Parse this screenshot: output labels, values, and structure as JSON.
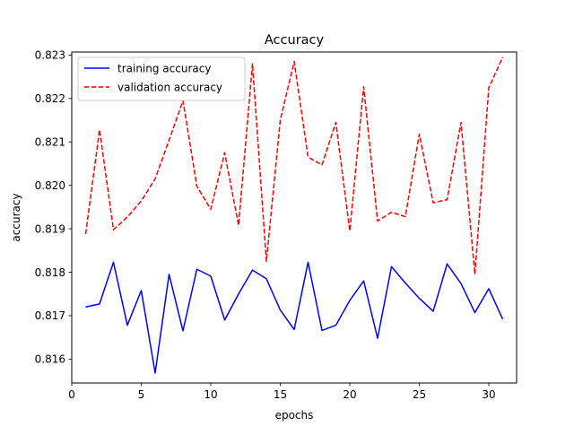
{
  "chart_data": {
    "type": "line",
    "title": "Accuracy",
    "xlabel": "epochs",
    "ylabel": "accuracy",
    "xlim": [
      0,
      32
    ],
    "ylim": [
      0.81545,
      0.82307
    ],
    "xticks": [
      0,
      5,
      10,
      15,
      20,
      25,
      30
    ],
    "xtick_labels": [
      "0",
      "5",
      "10",
      "15",
      "20",
      "25",
      "30"
    ],
    "yticks": [
      0.816,
      0.817,
      0.818,
      0.819,
      0.82,
      0.821,
      0.822,
      0.823
    ],
    "ytick_labels": [
      "0.816",
      "0.817",
      "0.818",
      "0.819",
      "0.820",
      "0.821",
      "0.822",
      "0.823"
    ],
    "grid": false,
    "legend_position": "top-left",
    "x": [
      1,
      2,
      3,
      4,
      5,
      6,
      7,
      8,
      9,
      10,
      11,
      12,
      13,
      14,
      15,
      16,
      17,
      18,
      19,
      20,
      21,
      22,
      23,
      24,
      25,
      26,
      27,
      28,
      29,
      30,
      31
    ],
    "series": [
      {
        "name": "training accuracy",
        "color": "#0000ff",
        "dash": "solid",
        "values": [
          0.8172,
          0.81727,
          0.81823,
          0.81678,
          0.81758,
          0.81568,
          0.81795,
          0.81665,
          0.81807,
          0.81791,
          0.8169,
          0.8175,
          0.81805,
          0.81785,
          0.81713,
          0.81668,
          0.81823,
          0.81666,
          0.81678,
          0.81735,
          0.8178,
          0.81648,
          0.81813,
          0.81775,
          0.8174,
          0.8171,
          0.81819,
          0.81774,
          0.81707,
          0.81762,
          0.81692
        ]
      },
      {
        "name": "validation accuracy",
        "color": "#ff0000",
        "dash": "dashed",
        "values": [
          0.81888,
          0.82128,
          0.81898,
          0.81927,
          0.81964,
          0.82015,
          0.82104,
          0.82195,
          0.81998,
          0.81945,
          0.82075,
          0.81908,
          0.8228,
          0.81825,
          0.8215,
          0.82285,
          0.82065,
          0.82047,
          0.82145,
          0.81895,
          0.82227,
          0.81918,
          0.81938,
          0.81928,
          0.82118,
          0.8196,
          0.81967,
          0.82145,
          0.81795,
          0.82225,
          0.82295
        ]
      }
    ]
  }
}
